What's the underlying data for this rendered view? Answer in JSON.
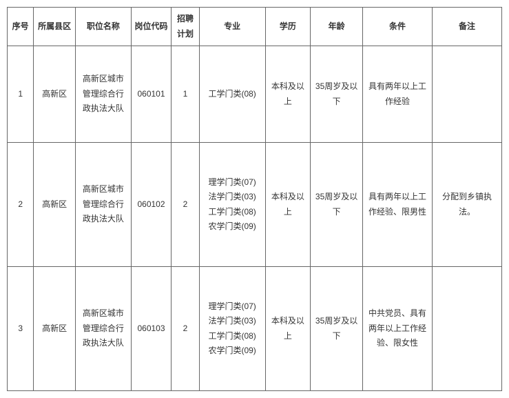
{
  "table": {
    "columns": [
      "序号",
      "所属县区",
      "职位名称",
      "岗位代码",
      "招聘计划",
      "专业",
      "学历",
      "年龄",
      "条件",
      "备注"
    ],
    "rows": [
      {
        "seq": "1",
        "district": "高新区",
        "position": "高新区城市管理综合行政执法大队",
        "code": "060101",
        "plan": "1",
        "major": "工学门类(08)",
        "education": "本科及以上",
        "age": "35周岁及以下",
        "condition": "具有两年以上工作经验",
        "remark": ""
      },
      {
        "seq": "2",
        "district": "高新区",
        "position": "高新区城市管理综合行政执法大队",
        "code": "060102",
        "plan": "2",
        "major": "理学门类(07)\n法学门类(03)\n工学门类(08)\n农学门类(09)",
        "education": "本科及以上",
        "age": "35周岁及以下",
        "condition": "具有两年以上工作经验、限男性",
        "remark": "分配到乡镇执法。"
      },
      {
        "seq": "3",
        "district": "高新区",
        "position": "高新区城市管理综合行政执法大队",
        "code": "060103",
        "plan": "2",
        "major": "理学门类(07)\n法学门类(03)\n工学门类(08)\n农学门类(09)",
        "education": "本科及以上",
        "age": "35周岁及以下",
        "condition": "中共党员、具有两年以上工作经验、限女性",
        "remark": ""
      }
    ],
    "border_color": "#666666",
    "background_color": "#ffffff",
    "text_color": "#333333",
    "fontsize": 12
  }
}
